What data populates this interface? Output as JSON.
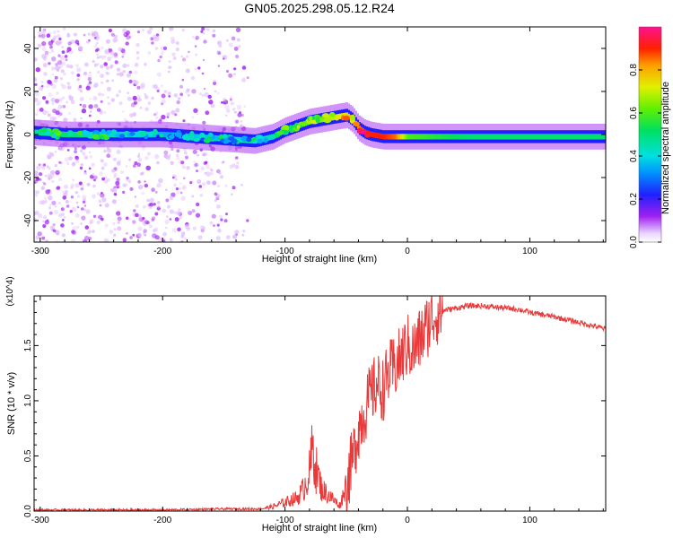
{
  "title": "GN05.2025.298.05.12.R24",
  "chart_data": [
    {
      "type": "heatmap",
      "xlabel": "Height of straight line (km)",
      "ylabel": "Frequency (Hz)",
      "xlim": [
        -305,
        162
      ],
      "ylim": [
        -50,
        50
      ],
      "xticks": [
        -300,
        -200,
        -100,
        0,
        100
      ],
      "xtick_labels": [
        "-300",
        "-200",
        "-100",
        "0",
        "100"
      ],
      "yticks": [
        -40,
        -20,
        0,
        20,
        40
      ],
      "ytick_labels": [
        "-40",
        "-20",
        "0",
        "20",
        "40"
      ],
      "colorbar": {
        "label": "Normalized spectral amplitude",
        "range": [
          0,
          1
        ],
        "ticks": [
          0.0,
          0.2,
          0.4,
          0.6,
          0.8
        ],
        "tick_labels": [
          "0.0",
          "0.2",
          "0.4",
          "0.6",
          "0.8"
        ],
        "colormap": "rainbow (white → purple → blue → cyan → green → yellow → orange → red → magenta)"
      },
      "ridge": {
        "description": "main spectral band centered near 0 Hz",
        "x": [
          -305,
          -280,
          -250,
          -200,
          -150,
          -125,
          -110,
          -100,
          -90,
          -80,
          -70,
          -60,
          -50,
          -45,
          -40,
          -35,
          -30,
          -20,
          -10,
          0,
          50,
          100,
          162
        ],
        "y": [
          1,
          0,
          0,
          0,
          -2,
          -3,
          -1,
          2,
          4,
          6,
          7,
          8,
          9,
          7,
          3,
          1,
          0,
          -1,
          -1,
          -1,
          -1,
          -1,
          -1
        ],
        "amplitude": [
          0.45,
          0.5,
          0.45,
          0.35,
          0.4,
          0.4,
          0.45,
          0.5,
          0.55,
          0.6,
          0.65,
          0.7,
          0.75,
          0.8,
          0.85,
          0.9,
          0.9,
          0.9,
          0.85,
          0.6,
          0.5,
          0.5,
          0.5
        ]
      },
      "scatter_region": {
        "description": "sparse purple speckle across all frequencies",
        "x_range": [
          -305,
          -130
        ],
        "amplitude": 0.05
      }
    },
    {
      "type": "line",
      "xlabel": "Height of straight line (km)",
      "ylabel": "SNR (10 * v/v)",
      "y_multiplier": "(x10^4)",
      "xlim": [
        -305,
        162
      ],
      "ylim": [
        0,
        1.95
      ],
      "xticks": [
        -300,
        -200,
        -100,
        0,
        100
      ],
      "xtick_labels": [
        "-300",
        "-200",
        "-100",
        "0",
        "100"
      ],
      "yticks": [
        0.0,
        0.5,
        1.0,
        1.5
      ],
      "ytick_labels": [
        "0.0",
        "0.5",
        "1.0",
        "1.5"
      ],
      "color": "#e83a3a",
      "series": [
        {
          "x": [
            -305,
            -250,
            -200,
            -150,
            -120,
            -110,
            -100,
            -90,
            -85,
            -80,
            -77,
            -75,
            -70,
            -65,
            -60,
            -55,
            -50,
            -45,
            -40,
            -35,
            -30,
            -25,
            -20,
            -15,
            -10,
            -5,
            0,
            5,
            10,
            15,
            20,
            25,
            30,
            40,
            50,
            60,
            70,
            80,
            90,
            100,
            120,
            140,
            162
          ],
          "y": [
            0.01,
            0.01,
            0.01,
            0.02,
            0.02,
            0.04,
            0.08,
            0.12,
            0.2,
            0.35,
            0.6,
            0.4,
            0.2,
            0.15,
            0.1,
            0.05,
            0.25,
            0.45,
            0.75,
            0.9,
            1.05,
            1.15,
            1.1,
            1.25,
            1.3,
            1.4,
            1.5,
            1.45,
            1.55,
            1.65,
            1.75,
            1.8,
            1.82,
            1.84,
            1.86,
            1.86,
            1.85,
            1.84,
            1.83,
            1.8,
            1.76,
            1.71,
            1.65
          ]
        }
      ]
    }
  ]
}
